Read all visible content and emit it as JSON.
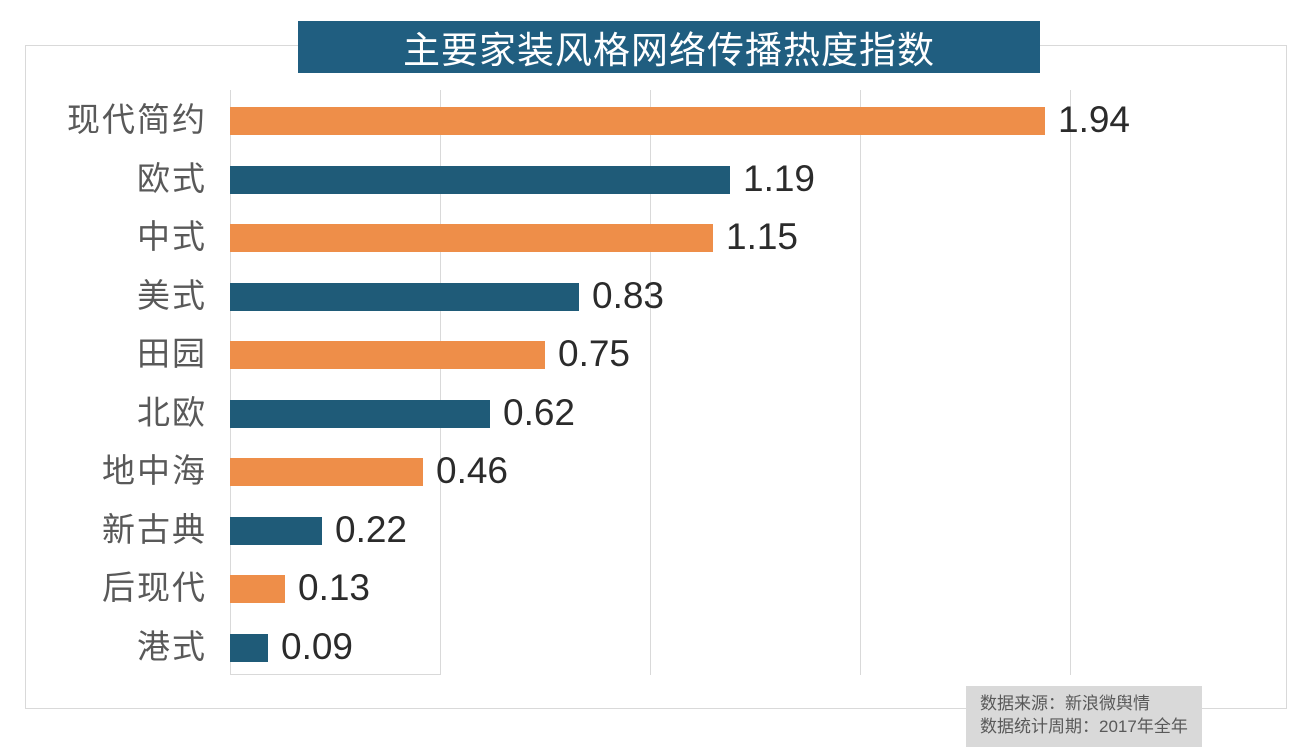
{
  "title": {
    "text": "主要家装风格网络传播热度指数",
    "bg_color": "#205e80",
    "text_color": "#ffffff"
  },
  "source_note": {
    "line1": "数据来源：新浪微舆情",
    "line2": "数据统计周期：2017年全年",
    "bg_color": "#d9d9d9",
    "text_color": "#595959"
  },
  "chart_data": {
    "type": "bar",
    "orientation": "horizontal",
    "title": "主要家装风格网络传播热度指数",
    "categories": [
      "现代简约",
      "欧式",
      "中式",
      "美式",
      "田园",
      "北欧",
      "地中海",
      "新古典",
      "后现代",
      "港式"
    ],
    "values": [
      1.94,
      1.19,
      1.15,
      0.83,
      0.75,
      0.62,
      0.46,
      0.22,
      0.13,
      0.09
    ],
    "value_labels": [
      "1.94",
      "1.19",
      "1.15",
      "0.83",
      "0.75",
      "0.62",
      "0.46",
      "0.22",
      "0.13",
      "0.09"
    ],
    "xlabel": "",
    "ylabel": "",
    "xlim": [
      0,
      2.0
    ],
    "gridline_interval": 0.5,
    "grid": true,
    "legend": false,
    "tick_labels_shown": false,
    "data_labels_shown": true,
    "bar_colors_alternating": [
      "#ee8e49",
      "#1f5b78"
    ],
    "gridline_color": "#d9d9d9",
    "label_color": "#595959",
    "value_label_color": "#2b2b2b"
  }
}
